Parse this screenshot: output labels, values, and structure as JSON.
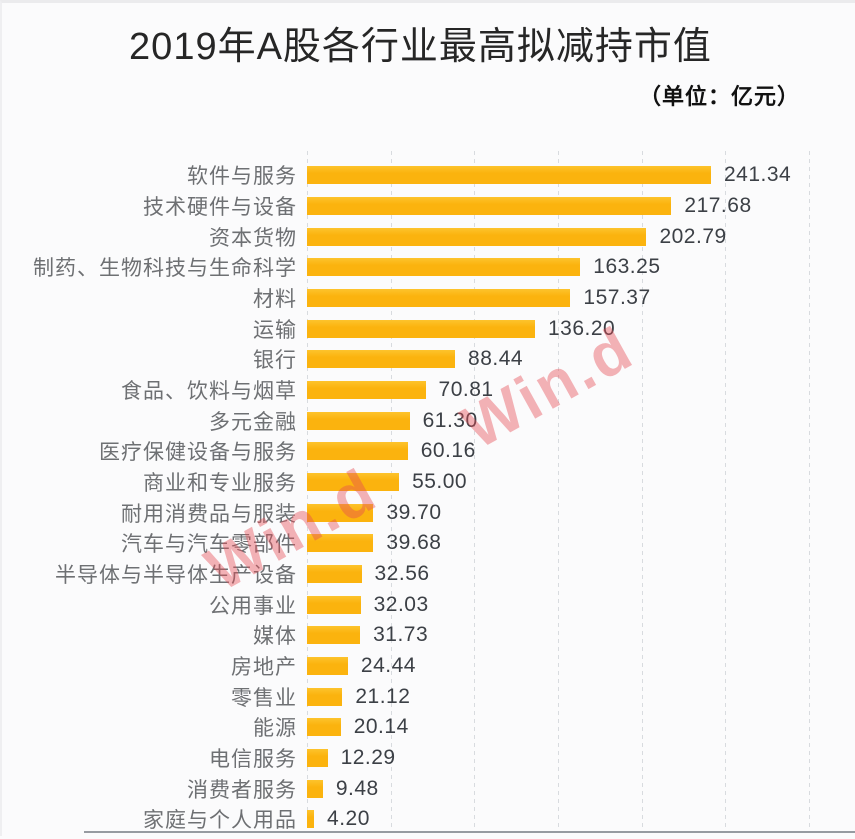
{
  "chart": {
    "title": "2019年A股各行业最高拟减持市值",
    "unit_label": "（单位：亿元）",
    "watermark_text": "Win.d",
    "colors": {
      "bar": "#FBB30E",
      "title": "#262626",
      "category_label": "#6E7073",
      "value_label": "#3C4046",
      "gridline": "#D8DBDF",
      "axis_line": "#979BA1",
      "watermark": "rgba(228,74,84,0.42)"
    }
  },
  "chart_data": {
    "type": "bar",
    "orientation": "horizontal",
    "title": "2019年A股各行业最高拟减持市值",
    "unit": "亿元",
    "xlabel": "",
    "ylabel": "",
    "legend": "none",
    "grid": "vertical-dashed",
    "xlim": [
      0,
      300
    ],
    "grid_step": 50,
    "value_labels_shown": true,
    "categories": [
      "软件与服务",
      "技术硬件与设备",
      "资本货物",
      "制药、生物科技与生命科学",
      "材料",
      "运输",
      "银行",
      "食品、饮料与烟草",
      "多元金融",
      "医疗保健设备与服务",
      "商业和专业服务",
      "耐用消费品与服装",
      "汽车与汽车零部件",
      "半导体与半导体生产设备",
      "公用事业",
      "媒体",
      "房地产",
      "零售业",
      "能源",
      "电信服务",
      "消费者服务",
      "家庭与个人用品"
    ],
    "values": [
      241.34,
      217.68,
      202.79,
      163.25,
      157.37,
      136.2,
      88.44,
      70.81,
      61.3,
      60.16,
      55.0,
      39.7,
      39.68,
      32.56,
      32.03,
      31.73,
      24.44,
      21.12,
      20.14,
      12.29,
      9.48,
      4.2
    ],
    "value_labels": [
      "241.34",
      "217.68",
      "202.79",
      "163.25",
      "157.37",
      "136.20",
      "88.44",
      "70.81",
      "61.30",
      "60.16",
      "55.00",
      "39.70",
      "39.68",
      "32.56",
      "32.03",
      "31.73",
      "24.44",
      "21.12",
      "20.14",
      "12.29",
      "9.48",
      "4.20"
    ]
  }
}
